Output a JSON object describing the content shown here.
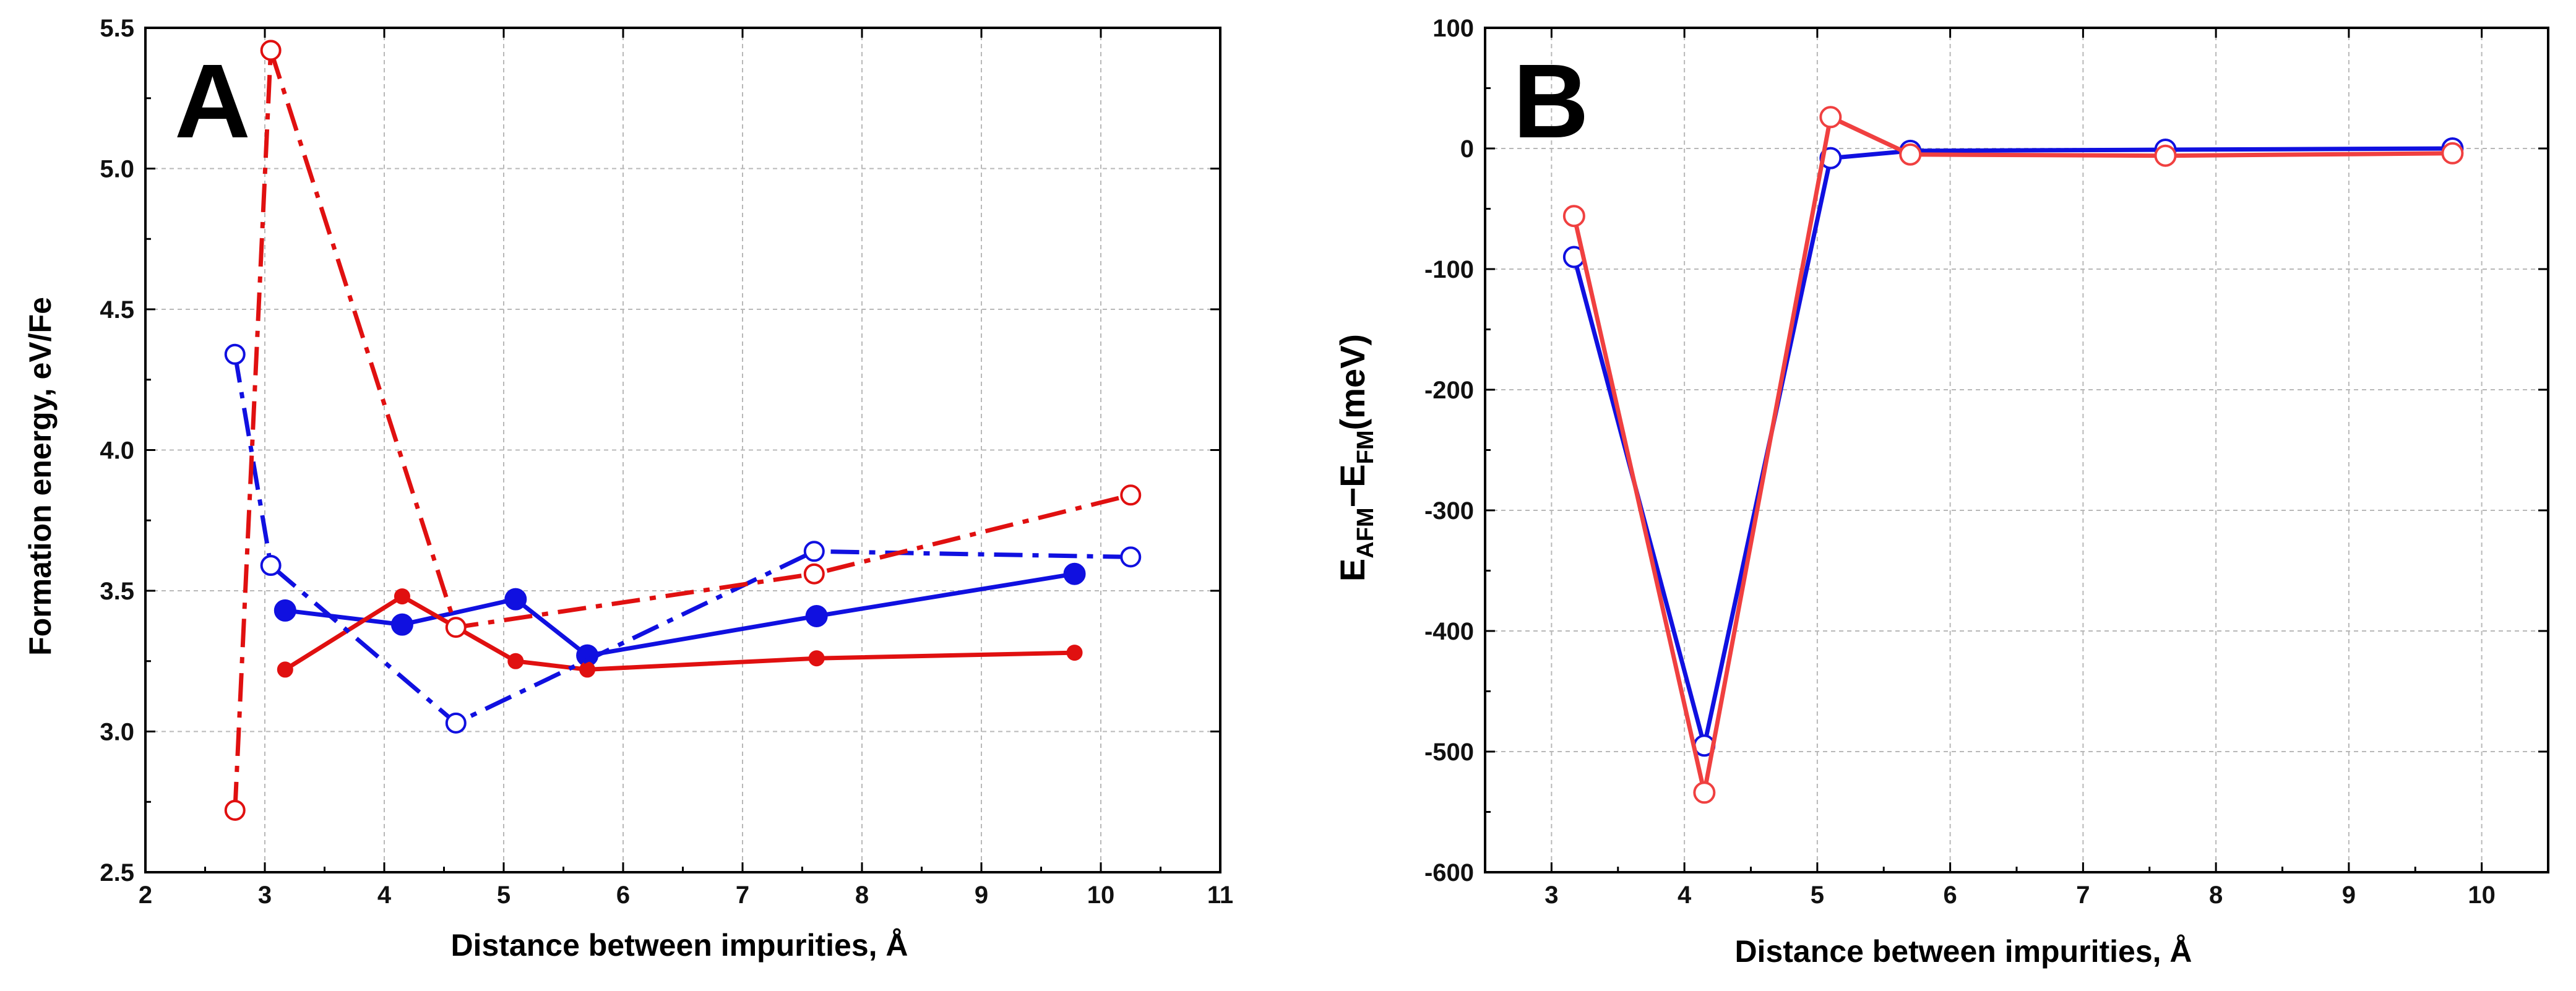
{
  "chart_data": [
    {
      "panel": "A",
      "type": "line",
      "xlabel": "Distance between impurities, Å",
      "ylabel": "Formation energy, eV/Fe",
      "xlim": [
        2,
        11
      ],
      "ylim": [
        2.5,
        5.5
      ],
      "xticks": [
        2,
        3,
        4,
        5,
        6,
        7,
        8,
        9,
        10,
        11
      ],
      "yticks": [
        2.5,
        3.0,
        3.5,
        4.0,
        4.5,
        5.0,
        5.5
      ],
      "xtick_labels": [
        "2",
        "3",
        "4",
        "5",
        "6",
        "7",
        "8",
        "9",
        "10",
        "11"
      ],
      "ytick_labels": [
        "2.5",
        "3.0",
        "3.5",
        "4.0",
        "4.5",
        "5.0",
        "5.5"
      ],
      "grid": true,
      "series": [
        {
          "name": "blue-solid-filled",
          "color": "#1010e0",
          "line": "solid",
          "marker": "filled-circle-large",
          "x": [
            3.17,
            4.15,
            5.1,
            5.7,
            7.62,
            9.78
          ],
          "y": [
            3.43,
            3.38,
            3.47,
            3.27,
            3.41,
            3.56
          ]
        },
        {
          "name": "red-solid-filled",
          "color": "#e01010",
          "line": "solid",
          "marker": "filled-circle-small",
          "x": [
            3.17,
            4.15,
            5.1,
            5.7,
            7.62,
            9.78
          ],
          "y": [
            3.22,
            3.48,
            3.25,
            3.22,
            3.26,
            3.28
          ]
        },
        {
          "name": "blue-dashdot-open",
          "color": "#1010e0",
          "line": "dashdot",
          "marker": "open-circle",
          "x": [
            2.75,
            3.05,
            4.6,
            7.6,
            10.25
          ],
          "y": [
            4.34,
            3.59,
            3.03,
            3.64,
            3.62
          ]
        },
        {
          "name": "red-dashdot-open",
          "color": "#e01010",
          "line": "dashdot",
          "marker": "open-circle",
          "x": [
            2.75,
            3.05,
            4.6,
            7.6,
            10.25
          ],
          "y": [
            2.72,
            5.42,
            3.37,
            3.56,
            3.84
          ]
        }
      ]
    },
    {
      "panel": "B",
      "type": "line",
      "xlabel": "Distance between impurities, Å",
      "ylabel_main": "E",
      "ylabel_sub1": "AFM",
      "ylabel_mid": "−E",
      "ylabel_sub2": "FM",
      "ylabel_tail": "(meV)",
      "xlim": [
        2.5,
        10.5
      ],
      "ylim": [
        -600,
        100
      ],
      "xticks": [
        3,
        4,
        5,
        6,
        7,
        8,
        9,
        10
      ],
      "yticks": [
        -600,
        -500,
        -400,
        -300,
        -200,
        -100,
        0,
        100
      ],
      "xtick_labels": [
        "3",
        "4",
        "5",
        "6",
        "7",
        "8",
        "9",
        "10"
      ],
      "ytick_labels": [
        "-600",
        "-500",
        "-400",
        "-300",
        "-200",
        "-100",
        "0",
        "100"
      ],
      "grid": true,
      "series": [
        {
          "name": "blue",
          "color": "#1010e0",
          "line": "solid",
          "marker": "open-circle",
          "x": [
            3.17,
            4.15,
            5.1,
            5.7,
            7.62,
            9.78
          ],
          "y": [
            -90,
            -495,
            -8,
            -2,
            -1,
            0
          ]
        },
        {
          "name": "red",
          "color": "#f04040",
          "line": "solid",
          "marker": "open-circle",
          "x": [
            3.17,
            4.15,
            5.1,
            5.7,
            7.62,
            9.78
          ],
          "y": [
            -56,
            -534,
            26,
            -5,
            -6,
            -4
          ]
        }
      ]
    }
  ]
}
